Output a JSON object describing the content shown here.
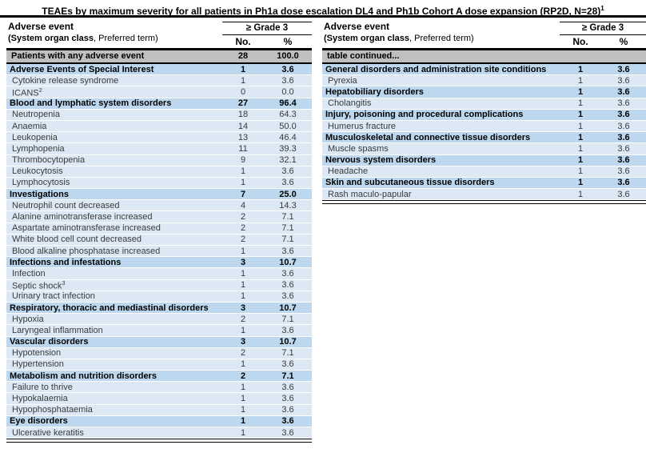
{
  "title": "TEAEs by maximum severity for all patients in Ph1a dose escalation DL4 and Ph1b Cohort A dose expansion (RP2D, N=28)",
  "title_sup": "1",
  "header": {
    "col1_line1": "Adverse event",
    "col1_line2_bold": "(System organ class",
    "col1_line2_regular": ", Preferred term)",
    "grade_group": "≥ Grade 3",
    "col_no": "No.",
    "col_pct": "%"
  },
  "colors": {
    "summary_row_bg": "#bfbfbf",
    "section_row_bg": "#bdd8ee",
    "detail_row_bg": "#dce9f5"
  },
  "left_table": {
    "summary_row": {
      "label": "Patients with any adverse event",
      "no": "28",
      "pct": "100.0"
    },
    "rows": [
      {
        "type": "section",
        "label": "Adverse Events of Special Interest",
        "no": "1",
        "pct": "3.6"
      },
      {
        "type": "detail",
        "label": "Cytokine release syndrome",
        "no": "1",
        "pct": "3.6"
      },
      {
        "type": "detail",
        "label": "ICANS",
        "sup": "2",
        "no": "0",
        "pct": "0.0"
      },
      {
        "type": "section",
        "label": "Blood and lymphatic system disorders",
        "no": "27",
        "pct": "96.4"
      },
      {
        "type": "detail",
        "label": "Neutropenia",
        "no": "18",
        "pct": "64.3"
      },
      {
        "type": "detail",
        "label": "Anaemia",
        "no": "14",
        "pct": "50.0"
      },
      {
        "type": "detail",
        "label": "Leukopenia",
        "no": "13",
        "pct": "46.4"
      },
      {
        "type": "detail",
        "label": "Lymphopenia",
        "no": "11",
        "pct": "39.3"
      },
      {
        "type": "detail",
        "label": "Thrombocytopenia",
        "no": "9",
        "pct": "32.1"
      },
      {
        "type": "detail",
        "label": "Leukocytosis",
        "no": "1",
        "pct": "3.6"
      },
      {
        "type": "detail",
        "label": "Lymphocytosis",
        "no": "1",
        "pct": "3.6"
      },
      {
        "type": "section",
        "label": "Investigations",
        "no": "7",
        "pct": "25.0"
      },
      {
        "type": "detail",
        "label": "Neutrophil count decreased",
        "no": "4",
        "pct": "14.3"
      },
      {
        "type": "detail",
        "label": "Alanine aminotransferase increased",
        "no": "2",
        "pct": "7.1"
      },
      {
        "type": "detail",
        "label": "Aspartate aminotransferase increased",
        "no": "2",
        "pct": "7.1"
      },
      {
        "type": "detail",
        "label": "White blood cell count decreased",
        "no": "2",
        "pct": "7.1"
      },
      {
        "type": "detail",
        "label": "Blood alkaline phosphatase increased",
        "no": "1",
        "pct": "3.6"
      },
      {
        "type": "section",
        "label": "Infections and infestations",
        "no": "3",
        "pct": "10.7"
      },
      {
        "type": "detail",
        "label": "Infection",
        "no": "1",
        "pct": "3.6"
      },
      {
        "type": "detail",
        "label": "Septic shock",
        "sup": "3",
        "no": "1",
        "pct": "3.6"
      },
      {
        "type": "detail",
        "label": "Urinary tract infection",
        "no": "1",
        "pct": "3.6"
      },
      {
        "type": "section",
        "label": "Respiratory, thoracic and mediastinal disorders",
        "no": "3",
        "pct": "10.7"
      },
      {
        "type": "detail",
        "label": "Hypoxia",
        "no": "2",
        "pct": "7.1"
      },
      {
        "type": "detail",
        "label": "Laryngeal inflammation",
        "no": "1",
        "pct": "3.6"
      },
      {
        "type": "section",
        "label": "Vascular disorders",
        "no": "3",
        "pct": "10.7"
      },
      {
        "type": "detail",
        "label": "Hypotension",
        "no": "2",
        "pct": "7.1"
      },
      {
        "type": "detail",
        "label": "Hypertension",
        "no": "1",
        "pct": "3.6"
      },
      {
        "type": "section",
        "label": "Metabolism and nutrition disorders",
        "no": "2",
        "pct": "7.1"
      },
      {
        "type": "detail",
        "label": "Failure to thrive",
        "no": "1",
        "pct": "3.6"
      },
      {
        "type": "detail",
        "label": "Hypokalaemia",
        "no": "1",
        "pct": "3.6"
      },
      {
        "type": "detail",
        "label": "Hypophosphataemia",
        "no": "1",
        "pct": "3.6"
      },
      {
        "type": "section",
        "label": "Eye disorders",
        "no": "1",
        "pct": "3.6"
      },
      {
        "type": "detail",
        "label": "Ulcerative keratitis",
        "no": "1",
        "pct": "3.6"
      }
    ]
  },
  "right_table": {
    "summary_row": {
      "label": "table continued...",
      "no": "",
      "pct": ""
    },
    "rows": [
      {
        "type": "section",
        "label": "General disorders and administration site conditions",
        "no": "1",
        "pct": "3.6"
      },
      {
        "type": "detail",
        "label": "Pyrexia",
        "no": "1",
        "pct": "3.6"
      },
      {
        "type": "section",
        "label": "Hepatobiliary disorders",
        "no": "1",
        "pct": "3.6"
      },
      {
        "type": "detail",
        "label": "Cholangitis",
        "no": "1",
        "pct": "3.6"
      },
      {
        "type": "section",
        "label": "Injury, poisoning and procedural complications",
        "no": "1",
        "pct": "3.6"
      },
      {
        "type": "detail",
        "label": "Humerus fracture",
        "no": "1",
        "pct": "3.6"
      },
      {
        "type": "section",
        "label": "Musculoskeletal and connective tissue disorders",
        "no": "1",
        "pct": "3.6"
      },
      {
        "type": "detail",
        "label": "Muscle spasms",
        "no": "1",
        "pct": "3.6"
      },
      {
        "type": "section",
        "label": "Nervous system disorders",
        "no": "1",
        "pct": "3.6"
      },
      {
        "type": "detail",
        "label": "Headache",
        "no": "1",
        "pct": "3.6"
      },
      {
        "type": "section",
        "label": "Skin and subcutaneous tissue disorders",
        "no": "1",
        "pct": "3.6"
      },
      {
        "type": "detail",
        "label": "Rash maculo-papular",
        "no": "1",
        "pct": "3.6"
      }
    ]
  }
}
